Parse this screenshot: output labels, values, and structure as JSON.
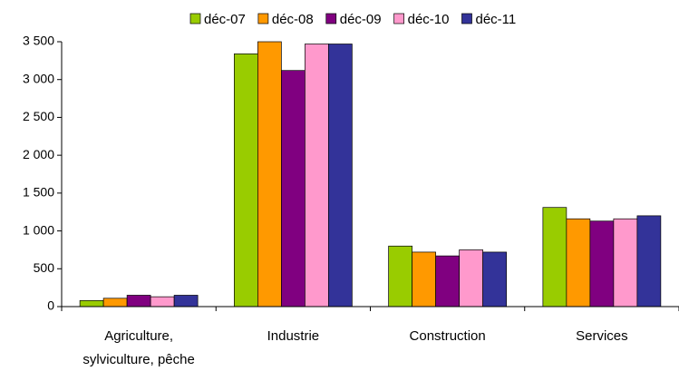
{
  "chart_data": {
    "type": "bar",
    "categories": [
      "Agriculture, sylviculture, pêche",
      "Industrie",
      "Construction",
      "Services"
    ],
    "series": [
      {
        "name": "déc-07",
        "color": "#99cc00",
        "values": [
          80,
          3340,
          800,
          1310
        ]
      },
      {
        "name": "déc-08",
        "color": "#ff9900",
        "values": [
          110,
          3500,
          720,
          1160
        ]
      },
      {
        "name": "déc-09",
        "color": "#800080",
        "values": [
          150,
          3120,
          670,
          1130
        ]
      },
      {
        "name": "déc-10",
        "color": "#ff99cc",
        "values": [
          130,
          3470,
          750,
          1160
        ]
      },
      {
        "name": "déc-11",
        "color": "#333399",
        "values": [
          150,
          3470,
          720,
          1200
        ]
      }
    ],
    "ylim": [
      0,
      3500
    ],
    "yticks": [
      0,
      500,
      {
        "value": 1000,
        "label": "1 000"
      },
      {
        "value": 1500,
        "label": "1 500"
      },
      {
        "value": 2000,
        "label": "2 000"
      },
      {
        "value": 2500,
        "label": "2 500"
      },
      {
        "value": 3000,
        "label": "3 000"
      },
      {
        "value": 3500,
        "label": "3 500"
      }
    ],
    "legend": "top"
  }
}
